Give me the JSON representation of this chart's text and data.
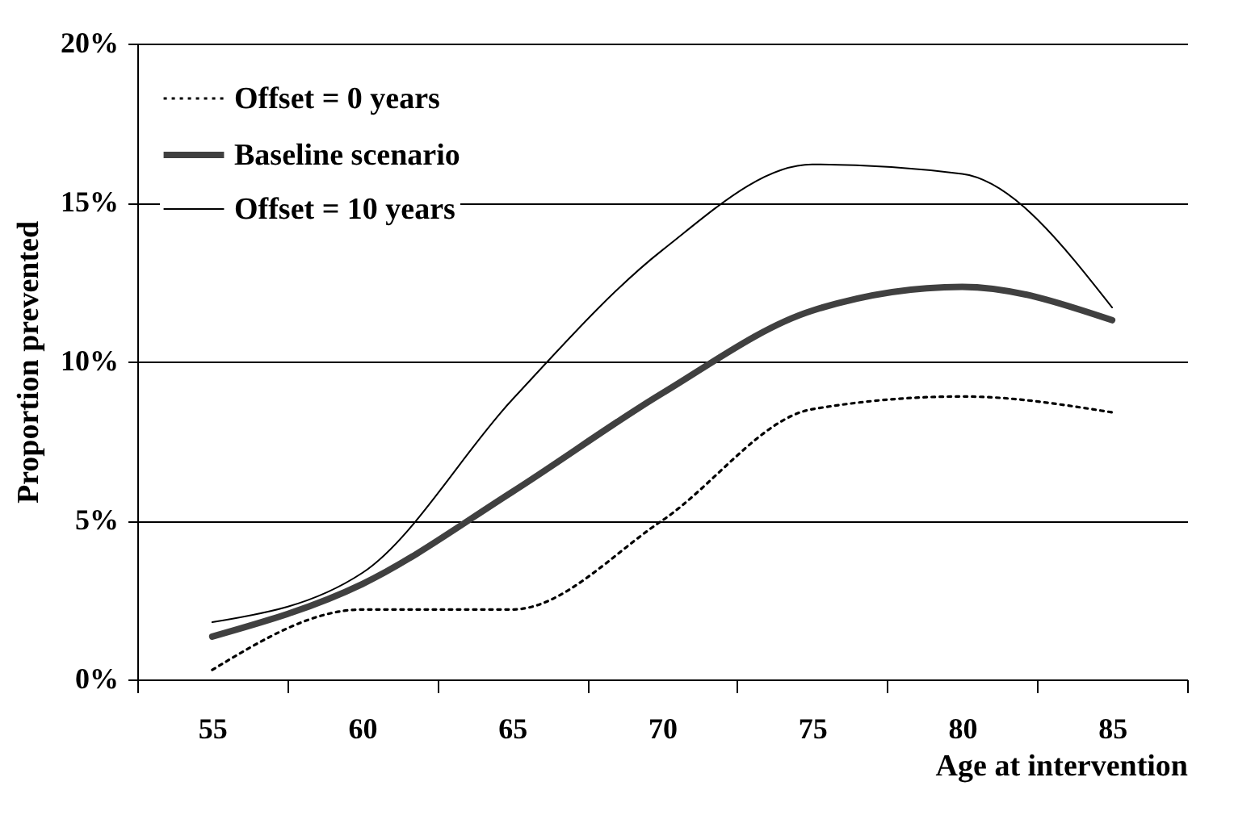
{
  "chart_data": {
    "type": "line",
    "xlabel": "Age at intervention",
    "ylabel": "Proportion prevented",
    "categories": [
      "55",
      "60",
      "65",
      "70",
      "75",
      "80",
      "85"
    ],
    "series": [
      {
        "name": "Offset = 0 years",
        "color": "#000000",
        "line_style": "dotted",
        "values": [
          0.3,
          2.2,
          2.2,
          5.0,
          8.5,
          8.9,
          8.4
        ]
      },
      {
        "name": "Baseline scenario",
        "color": "#404040",
        "line_style": "solid",
        "values": [
          1.35,
          3.0,
          5.9,
          9.0,
          11.6,
          12.35,
          11.3
        ]
      },
      {
        "name": "Offset = 10 years",
        "color": "#000000",
        "line_style": "solid",
        "values": [
          1.8,
          3.35,
          8.8,
          13.5,
          16.2,
          15.9,
          11.7
        ]
      }
    ],
    "ylim": [
      0,
      20
    ],
    "yticks": [
      {
        "value": 0,
        "label": "0%"
      },
      {
        "value": 5,
        "label": "5%"
      },
      {
        "value": 10,
        "label": "10%"
      },
      {
        "value": 15,
        "label": "15%"
      },
      {
        "value": 20,
        "label": "20%"
      }
    ],
    "grid": "y",
    "legend": "top left",
    "marker": "none"
  }
}
